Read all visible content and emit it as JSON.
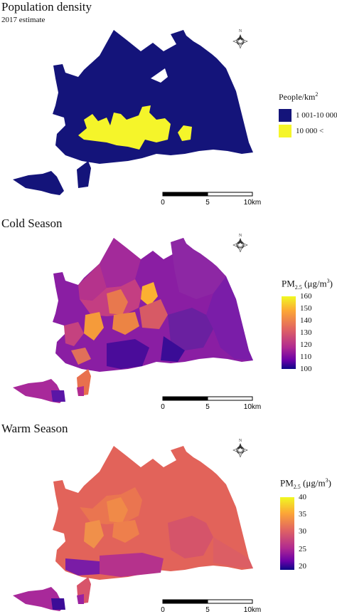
{
  "panels": [
    {
      "title": "Population density",
      "subtitle": "2017 estimate",
      "legend": {
        "title_text": "People/km",
        "title_sup": "2",
        "categories": [
          {
            "label": "1 001-10 000",
            "color": "#14147a"
          },
          {
            "label": "10 000 <",
            "color": "#f5f52a"
          }
        ]
      },
      "scalebar": {
        "labels": [
          "0",
          "5",
          "10km"
        ]
      }
    },
    {
      "title": "Cold Season",
      "legend": {
        "title_main": "PM",
        "title_sub": "2.5",
        "title_unit": "(μg/m",
        "title_unit_sup": "3",
        "title_close": ")",
        "ticks": [
          "160",
          "150",
          "140",
          "130",
          "120",
          "110",
          "100"
        ],
        "range": [
          100,
          160
        ]
      },
      "scalebar": {
        "labels": [
          "0",
          "5",
          "10km"
        ]
      }
    },
    {
      "title": "Warm Season",
      "legend": {
        "title_main": "PM",
        "title_sub": "2.5",
        "title_unit": "(μg/m",
        "title_unit_sup": "3",
        "title_close": ")",
        "ticks": [
          "40",
          "35",
          "30",
          "25",
          "20"
        ],
        "range": [
          20,
          40
        ]
      },
      "scalebar": {
        "labels": [
          "0",
          "5",
          "10km"
        ]
      }
    }
  ],
  "north_arrow": {
    "label": "N"
  },
  "colors": {
    "navy": "#14147a",
    "yellow": "#f5f52a",
    "plasma": [
      "#0d0887",
      "#6a00a8",
      "#b12a90",
      "#e16462",
      "#fca636",
      "#f0f921"
    ]
  }
}
